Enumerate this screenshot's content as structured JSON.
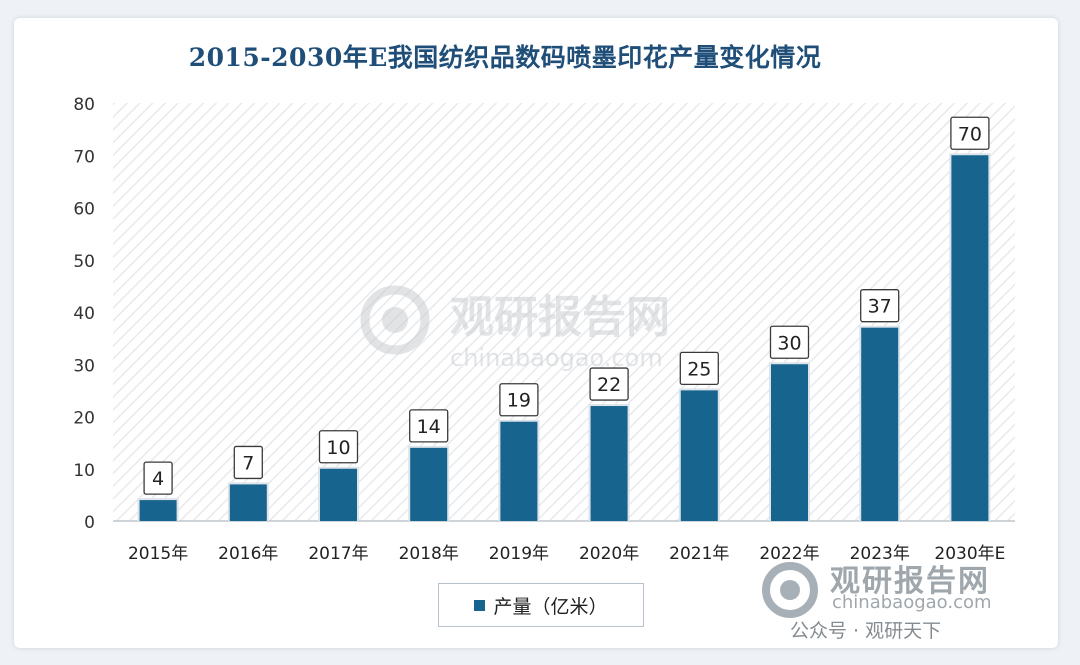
{
  "chart_data": {
    "type": "bar",
    "title": "2015-2030年E我国纺织品数码喷墨印花产量变化情况",
    "categories": [
      "2015年",
      "2016年",
      "2017年",
      "2018年",
      "2019年",
      "2020年",
      "2021年",
      "2022年",
      "2023年",
      "2030年E"
    ],
    "series": [
      {
        "name": "产量（亿米）",
        "values": [
          4,
          7,
          10,
          14,
          19,
          22,
          25,
          30,
          37,
          70
        ]
      }
    ],
    "yticks": [
      "0",
      "10",
      "20",
      "30",
      "40",
      "50",
      "60",
      "70",
      "80"
    ],
    "ylim": [
      0,
      80
    ],
    "grid": false,
    "legend_position": "bottom",
    "bar_color": "#17648f"
  },
  "watermark": {
    "center_cn": "观研报告网",
    "center_en": "chinabaogao.com",
    "corner_cn": "观研报告网",
    "corner_en": "chinabaogao.com",
    "corner_sub": "公众号 · 观研天下"
  }
}
